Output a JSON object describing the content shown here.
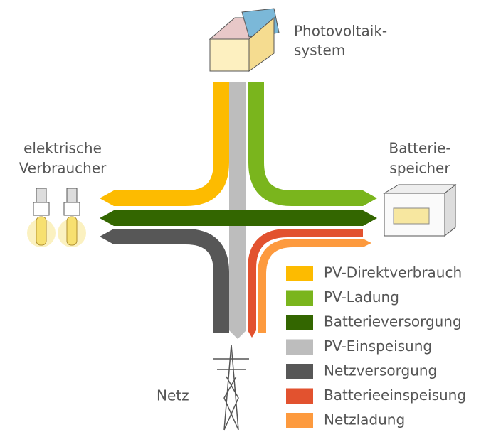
{
  "labels": {
    "photovoltaik": [
      "Photovoltaik-",
      "system"
    ],
    "verbraucher": [
      "elektrische",
      "Verbraucher"
    ],
    "speicher": [
      "Batterie-",
      "speicher"
    ],
    "netz": "Netz"
  },
  "legend": [
    {
      "label": "PV-Direktverbrauch",
      "color": "#fdbb00"
    },
    {
      "label": "PV-Ladung",
      "color": "#7ab51d"
    },
    {
      "label": "Batterieversorgung",
      "color": "#336600"
    },
    {
      "label": "PV-Einspeisung",
      "color": "#bdbdbd"
    },
    {
      "label": "Netzversorgung",
      "color": "#575757"
    },
    {
      "label": "Batterieeinspeisung",
      "color": "#e2522f"
    },
    {
      "label": "Netzladung",
      "color": "#fd9a3e"
    }
  ]
}
